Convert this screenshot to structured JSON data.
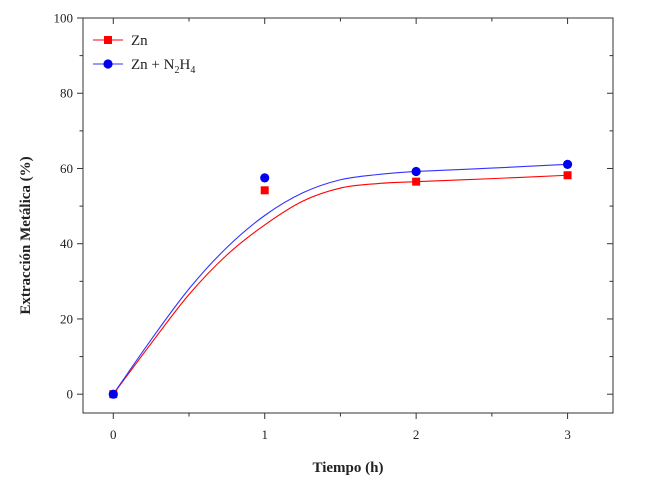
{
  "chart_data": {
    "type": "scatter",
    "title": "",
    "xlabel": "Tiempo (h)",
    "ylabel": "Extracción Metálica (%)",
    "xlim": [
      -0.2,
      3.3
    ],
    "ylim": [
      -5,
      100
    ],
    "xticks": [
      0,
      1,
      2,
      3
    ],
    "yticks": [
      0,
      20,
      40,
      60,
      80,
      100
    ],
    "x_tick_labels": [
      "0",
      "1",
      "2",
      "3"
    ],
    "y_tick_labels": [
      "0",
      "20",
      "40",
      "60",
      "80",
      "100"
    ],
    "grid": false,
    "legend_position": "top-left",
    "series": [
      {
        "name": "Zn",
        "marker": "square",
        "color": "#ff0000",
        "x": [
          0,
          1,
          2,
          3
        ],
        "y": [
          0,
          54.2,
          56.5,
          58.2
        ],
        "fit_curve": {
          "color": "#ff0000",
          "x": [
            0,
            0.25,
            0.5,
            0.75,
            1.0,
            1.25,
            1.5,
            1.75,
            2.0,
            2.5,
            3.0
          ],
          "y": [
            0,
            13.5,
            26.5,
            37.0,
            45.0,
            51.3,
            54.8,
            56.0,
            56.5,
            57.3,
            58.2
          ]
        }
      },
      {
        "name": "Zn + N2H4",
        "name_parts": {
          "base": "Zn + N",
          "sub1": "2",
          "mid": "H",
          "sub2": "4"
        },
        "marker": "circle",
        "color": "#0000ee",
        "line_color": "#3333ff",
        "x": [
          0,
          1,
          2,
          3
        ],
        "y": [
          0,
          57.5,
          59.2,
          61.1
        ],
        "fit_curve": {
          "color": "#3333ff",
          "x": [
            0,
            0.25,
            0.5,
            0.75,
            1.0,
            1.25,
            1.5,
            1.75,
            2.0,
            2.5,
            3.0
          ],
          "y": [
            0,
            14.5,
            28.0,
            39.0,
            47.5,
            53.5,
            57.0,
            58.4,
            59.2,
            60.1,
            61.1
          ]
        }
      }
    ]
  }
}
